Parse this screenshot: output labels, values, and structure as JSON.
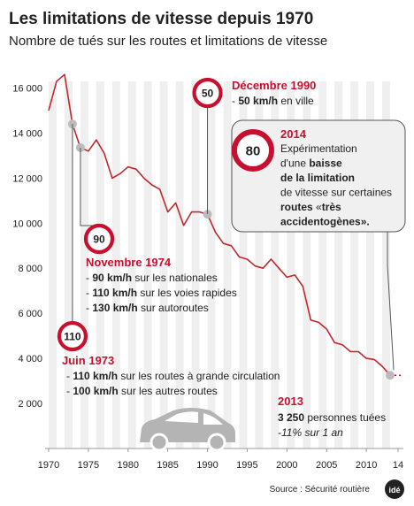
{
  "chart_data": {
    "type": "line",
    "title": "Les limitations de vitesse depuis 1970",
    "subtitle": "Nombre de tués sur les routes et limitations de vitesse",
    "x": [
      1970,
      1971,
      1972,
      1973,
      1974,
      1975,
      1976,
      1977,
      1978,
      1979,
      1980,
      1981,
      1982,
      1983,
      1984,
      1985,
      1986,
      1987,
      1988,
      1989,
      1990,
      1991,
      1992,
      1993,
      1994,
      1995,
      1996,
      1997,
      1998,
      1999,
      2000,
      2001,
      2002,
      2003,
      2004,
      2005,
      2006,
      2007,
      2008,
      2009,
      2010,
      2011,
      2012,
      2013
    ],
    "values": [
      15000,
      16300,
      16600,
      14400,
      13350,
      13200,
      13700,
      13100,
      12000,
      12200,
      12500,
      12400,
      12000,
      11700,
      11500,
      10500,
      10900,
      9900,
      10500,
      10500,
      10400,
      9600,
      9100,
      9000,
      8500,
      8400,
      8100,
      8000,
      8400,
      8000,
      7600,
      7700,
      7200,
      5700,
      5600,
      5300,
      4700,
      4600,
      4300,
      4300,
      4000,
      3950,
      3650,
      3250
    ],
    "color": "#c0282c",
    "xlim": [
      1970,
      2014
    ],
    "ylim": [
      0,
      17000
    ],
    "xticks": [
      1970,
      1975,
      1980,
      1985,
      1990,
      1995,
      2000,
      2005,
      2010,
      {
        "value": 2014,
        "label": "14"
      }
    ],
    "yticks": [
      {
        "value": 2000,
        "label": "2 000"
      },
      {
        "value": 4000,
        "label": "4 000"
      },
      {
        "value": 6000,
        "label": "6 000"
      },
      {
        "value": 8000,
        "label": "8 000"
      },
      {
        "value": 10000,
        "label": "10 000"
      },
      {
        "value": 12000,
        "label": "12 000"
      },
      {
        "value": 14000,
        "label": "14 000"
      },
      {
        "value": 16000,
        "label": "16 000"
      }
    ],
    "annotations": [
      {
        "sign": "110",
        "date": "Juin 1973",
        "lines": [
          [
            {
              "text": "- "
            },
            {
              "text": "110 km/h",
              "bold": true
            },
            {
              "text": " sur les routes à grande circulation"
            }
          ],
          [
            {
              "text": "- "
            },
            {
              "text": "100 km/h",
              "bold": true
            },
            {
              "text": " sur les autres routes"
            }
          ]
        ]
      },
      {
        "sign": "90",
        "date": "Novembre 1974",
        "lines": [
          [
            {
              "text": "- "
            },
            {
              "text": "90 km/h",
              "bold": true
            },
            {
              "text": " sur les nationales"
            }
          ],
          [
            {
              "text": "- "
            },
            {
              "text": "110 km/h",
              "bold": true
            },
            {
              "text": " sur les voies rapides"
            }
          ],
          [
            {
              "text": "- "
            },
            {
              "text": "130 km/h",
              "bold": true
            },
            {
              "text": " sur autoroutes"
            }
          ]
        ]
      },
      {
        "sign": "50",
        "date": "Décembre 1990",
        "lines": [
          [
            {
              "text": "- "
            },
            {
              "text": "50 km/h",
              "bold": true
            },
            {
              "text": " en ville"
            }
          ]
        ]
      },
      {
        "sign": "80",
        "date": "2014",
        "lines": [
          [
            {
              "text": "Expérimentation"
            }
          ],
          [
            {
              "text": "d'une "
            },
            {
              "text": "baisse",
              "bold": true
            }
          ],
          [
            {
              "text": "de la limitation",
              "bold": true
            }
          ],
          [
            {
              "text": "de vitesse sur certaines"
            }
          ],
          [
            {
              "text": "routes",
              "bold": true
            },
            {
              "text": " «"
            },
            {
              "text": "très",
              "bold": true
            }
          ],
          [
            {
              "text": "accidentogènes».",
              "bold": true
            }
          ]
        ]
      },
      {
        "date": "2013",
        "lines": [
          [
            {
              "text": "3 250",
              "bold": true
            },
            {
              "text": " personnes tuées"
            }
          ],
          [
            {
              "text": "-11% sur 1 an",
              "italic": true
            }
          ]
        ]
      }
    ],
    "source": "Source : Sécurité routière",
    "logo": "idé"
  }
}
